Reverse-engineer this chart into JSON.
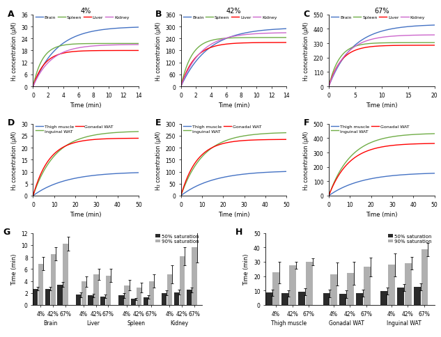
{
  "title_A": "4%",
  "title_B": "42%",
  "title_C": "67%",
  "colors_top": {
    "Brain": "#4472c4",
    "Spleen": "#70ad47",
    "Liver": "#ff0000",
    "Kidney": "#cc66cc"
  },
  "colors_bottom": {
    "Thigh muscle": "#4472c4",
    "Inguinal WAT": "#70ad47",
    "Gonadal WAT": "#ff0000"
  },
  "panel_A": {
    "xlim": [
      0,
      14
    ],
    "ylim": [
      0,
      36
    ],
    "yticks": [
      0,
      6,
      12,
      18,
      24,
      30,
      36
    ],
    "xticks": [
      0,
      2,
      4,
      6,
      8,
      10,
      12,
      14
    ],
    "Brain": {
      "a": 30.0,
      "b": 0.32
    },
    "Spleen": {
      "a": 21.5,
      "b": 0.8
    },
    "Liver": {
      "a": 18.0,
      "b": 0.65
    },
    "Kidney": {
      "a": 21.0,
      "b": 0.42
    }
  },
  "panel_B": {
    "xlim": [
      0,
      14
    ],
    "ylim": [
      0,
      360
    ],
    "yticks": [
      0,
      60,
      120,
      180,
      240,
      300,
      360
    ],
    "xticks": [
      0,
      2,
      4,
      6,
      8,
      10,
      12,
      14
    ],
    "Brain": {
      "a": 295,
      "b": 0.28
    },
    "Spleen": {
      "a": 245,
      "b": 0.7
    },
    "Liver": {
      "a": 220,
      "b": 0.55
    },
    "Kidney": {
      "a": 270,
      "b": 0.38
    }
  },
  "panel_C": {
    "xlim": [
      0,
      20
    ],
    "ylim": [
      0,
      550
    ],
    "yticks": [
      0,
      110,
      220,
      330,
      440,
      550
    ],
    "xticks": [
      0,
      5,
      10,
      15,
      20
    ],
    "Brain": {
      "a": 475,
      "b": 0.22
    },
    "Spleen": {
      "a": 335,
      "b": 0.5
    },
    "Liver": {
      "a": 315,
      "b": 0.42
    },
    "Kidney": {
      "a": 395,
      "b": 0.3
    }
  },
  "panel_D": {
    "xlim": [
      0,
      50
    ],
    "ylim": [
      0,
      30
    ],
    "yticks": [
      0,
      5,
      10,
      15,
      20,
      25,
      30
    ],
    "xticks": [
      0,
      10,
      20,
      30,
      40,
      50
    ],
    "Thigh muscle": {
      "a": 10.0,
      "b": 0.065
    },
    "Inguinal WAT": {
      "a": 27.0,
      "b": 0.095
    },
    "Gonadal WAT": {
      "a": 24.0,
      "b": 0.13
    }
  },
  "panel_E": {
    "xlim": [
      0,
      50
    ],
    "ylim": [
      0,
      300
    ],
    "yticks": [
      0,
      50,
      100,
      150,
      200,
      250,
      300
    ],
    "xticks": [
      0,
      10,
      20,
      30,
      40,
      50
    ],
    "Thigh muscle": {
      "a": 105,
      "b": 0.065
    },
    "Inguinal WAT": {
      "a": 265,
      "b": 0.095
    },
    "Gonadal WAT": {
      "a": 235,
      "b": 0.13
    }
  },
  "panel_F": {
    "xlim": [
      0,
      50
    ],
    "ylim": [
      0,
      500
    ],
    "yticks": [
      0,
      100,
      200,
      300,
      400,
      500
    ],
    "xticks": [
      0,
      10,
      20,
      30,
      40,
      50
    ],
    "Thigh muscle": {
      "a": 162,
      "b": 0.065
    },
    "Inguinal WAT": {
      "a": 435,
      "b": 0.095
    },
    "Gonadal WAT": {
      "a": 365,
      "b": 0.105
    }
  },
  "panel_G": {
    "ylim": [
      0,
      12
    ],
    "yticks": [
      0,
      2,
      4,
      6,
      8,
      10,
      12
    ],
    "tissues": [
      "Brain",
      "Liver",
      "Spleen",
      "Kidney"
    ],
    "concentrations": [
      "4%",
      "42%",
      "67%"
    ],
    "dark_50": {
      "Brain": [
        2.7,
        2.7,
        3.4
      ],
      "Liver": [
        1.7,
        1.6,
        1.4
      ],
      "Spleen": [
        1.6,
        1.0,
        1.3
      ],
      "Kidney": [
        2.0,
        2.1,
        2.5
      ]
    },
    "light_90": {
      "Brain": [
        6.9,
        8.5,
        10.2
      ],
      "Liver": [
        3.9,
        5.1,
        4.9
      ],
      "Spleen": [
        3.3,
        2.9,
        4.0
      ],
      "Kidney": [
        5.1,
        8.1,
        9.6
      ]
    },
    "dark_50_err": {
      "Brain": [
        0.3,
        0.3,
        0.4
      ],
      "Liver": [
        0.4,
        0.3,
        0.3
      ],
      "Spleen": [
        0.4,
        0.2,
        0.3
      ],
      "Kidney": [
        0.4,
        0.4,
        0.4
      ]
    },
    "light_90_err": {
      "Brain": [
        1.1,
        1.1,
        1.2
      ],
      "Liver": [
        0.9,
        0.9,
        1.1
      ],
      "Spleen": [
        0.9,
        0.8,
        1.1
      ],
      "Kidney": [
        1.5,
        1.5,
        2.5
      ]
    }
  },
  "panel_H": {
    "ylim": [
      0,
      50
    ],
    "yticks": [
      0,
      10,
      20,
      30,
      40,
      50
    ],
    "tissues": [
      "Thigh muscle",
      "Gonadal WAT",
      "Inguinal WAT"
    ],
    "concentrations": [
      "4%",
      "42%",
      "67%"
    ],
    "dark_50": {
      "Thigh muscle": [
        8.5,
        8.0,
        9.2
      ],
      "Gonadal WAT": [
        8.0,
        7.5,
        8.2
      ],
      "Inguinal WAT": [
        9.8,
        12.0,
        12.5
      ]
    },
    "light_90": {
      "Thigh muscle": [
        22.5,
        27.5,
        30.0
      ],
      "Gonadal WAT": [
        21.5,
        22.0,
        26.5
      ],
      "Inguinal WAT": [
        28.0,
        29.0,
        38.5
      ]
    },
    "dark_50_err": {
      "Thigh muscle": [
        2.0,
        2.0,
        2.5
      ],
      "Gonadal WAT": [
        2.5,
        2.5,
        2.5
      ],
      "Inguinal WAT": [
        2.5,
        2.5,
        2.5
      ]
    },
    "light_90_err": {
      "Thigh muscle": [
        7.5,
        2.5,
        2.5
      ],
      "Gonadal WAT": [
        8.0,
        8.0,
        6.5
      ],
      "Inguinal WAT": [
        8.0,
        4.5,
        4.5
      ]
    }
  },
  "ylabel_conc": "H₂ concentration (μM)",
  "xlabel_time": "Time (min)",
  "ylabel_time": "Time (min)",
  "dark_color": "#2b2b2b",
  "light_color": "#b0b0b0"
}
